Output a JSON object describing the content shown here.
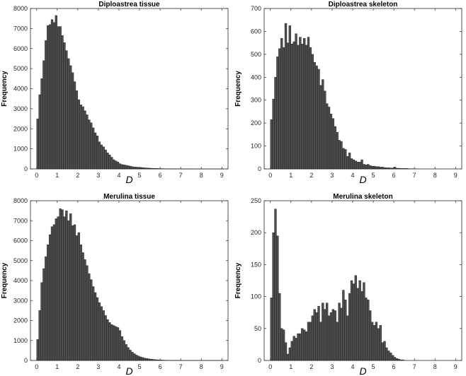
{
  "chart_data": [
    {
      "type": "bar",
      "title": "Diploastrea tissue",
      "xlabel": "D",
      "ylabel": "Frequency",
      "xlim": [
        -0.3,
        9.3
      ],
      "ylim": [
        0,
        8000
      ],
      "xticks": [
        0,
        1,
        2,
        3,
        4,
        5,
        6,
        7,
        8,
        9
      ],
      "yticks": [
        0,
        1000,
        2000,
        3000,
        4000,
        5000,
        6000,
        7000,
        8000
      ],
      "bin_width": 0.1,
      "x": [
        0.0,
        0.1,
        0.2,
        0.3,
        0.4,
        0.5,
        0.6,
        0.7,
        0.8,
        0.9,
        1.0,
        1.1,
        1.2,
        1.3,
        1.4,
        1.5,
        1.6,
        1.7,
        1.8,
        1.9,
        2.0,
        2.1,
        2.2,
        2.3,
        2.4,
        2.5,
        2.6,
        2.7,
        2.8,
        2.9,
        3.0,
        3.1,
        3.2,
        3.3,
        3.4,
        3.5,
        3.6,
        3.7,
        3.8,
        3.9,
        4.0,
        4.1,
        4.2,
        4.3,
        4.4,
        4.5,
        4.6,
        4.7,
        4.8,
        4.9,
        5.0,
        5.1,
        5.2,
        5.3,
        5.4,
        5.5,
        5.6,
        5.7,
        5.8,
        5.9,
        6.0,
        6.1,
        6.2,
        6.3,
        6.4,
        6.5,
        6.6,
        6.7,
        6.8,
        6.9,
        7.0,
        7.1,
        7.2,
        7.3,
        7.4,
        7.5,
        7.6,
        7.7,
        7.8,
        7.9,
        8.0,
        8.1,
        8.2,
        8.3,
        8.4,
        8.5,
        8.6,
        8.7,
        8.8,
        8.9,
        9.0
      ],
      "values": [
        2500,
        3700,
        4500,
        5400,
        6400,
        7150,
        7200,
        7450,
        7300,
        7650,
        7100,
        7100,
        6650,
        6300,
        5900,
        5500,
        5150,
        4800,
        4350,
        3900,
        3450,
        3200,
        3100,
        2900,
        2700,
        2450,
        2300,
        2050,
        1800,
        1650,
        1350,
        1200,
        1100,
        950,
        800,
        700,
        580,
        460,
        400,
        350,
        260,
        220,
        200,
        180,
        160,
        140,
        115,
        100,
        90,
        80,
        75,
        65,
        55,
        48,
        40,
        35,
        30,
        26,
        22,
        18,
        16,
        14,
        12,
        10,
        9,
        8,
        7,
        6,
        5,
        5,
        4,
        4,
        3,
        3,
        3,
        2,
        2,
        2,
        2,
        2,
        2,
        1,
        1,
        1,
        1,
        1,
        1,
        1,
        1,
        1,
        1
      ]
    },
    {
      "type": "bar",
      "title": "Diploastrea skeleton",
      "xlabel": "D",
      "ylabel": "Frequency",
      "xlim": [
        -0.3,
        9.3
      ],
      "ylim": [
        0,
        700
      ],
      "xticks": [
        0,
        1,
        2,
        3,
        4,
        5,
        6,
        7,
        8,
        9
      ],
      "yticks": [
        0,
        100,
        200,
        300,
        400,
        500,
        600,
        700
      ],
      "bin_width": 0.1,
      "x": [
        0.0,
        0.1,
        0.2,
        0.3,
        0.4,
        0.5,
        0.6,
        0.7,
        0.8,
        0.9,
        1.0,
        1.1,
        1.2,
        1.3,
        1.4,
        1.5,
        1.6,
        1.7,
        1.8,
        1.9,
        2.0,
        2.1,
        2.2,
        2.3,
        2.4,
        2.5,
        2.6,
        2.7,
        2.8,
        2.9,
        3.0,
        3.1,
        3.2,
        3.3,
        3.4,
        3.5,
        3.6,
        3.7,
        3.8,
        3.9,
        4.0,
        4.1,
        4.2,
        4.3,
        4.4,
        4.5,
        4.6,
        4.7,
        4.8,
        4.9,
        5.0,
        5.1,
        5.2,
        5.3,
        5.4,
        5.5,
        5.6,
        5.7,
        5.8,
        5.9,
        6.0,
        6.1,
        6.2,
        6.3,
        6.4,
        6.5,
        6.6,
        6.7,
        6.8,
        6.9,
        7.0
      ],
      "values": [
        215,
        305,
        400,
        490,
        525,
        570,
        530,
        635,
        550,
        625,
        545,
        555,
        590,
        540,
        575,
        545,
        570,
        540,
        575,
        530,
        500,
        465,
        450,
        435,
        365,
        390,
        340,
        285,
        270,
        240,
        220,
        185,
        160,
        125,
        120,
        90,
        85,
        55,
        70,
        45,
        40,
        35,
        30,
        30,
        40,
        20,
        18,
        20,
        15,
        12,
        12,
        10,
        10,
        8,
        8,
        6,
        5,
        5,
        4,
        4,
        8,
        3,
        3,
        2,
        2,
        2,
        2,
        1,
        1,
        1,
        1
      ]
    },
    {
      "type": "bar",
      "title": "Merulina tissue",
      "xlabel": "D",
      "ylabel": "Frequency",
      "xlim": [
        -0.3,
        9.3
      ],
      "ylim": [
        0,
        8000
      ],
      "xticks": [
        0,
        1,
        2,
        3,
        4,
        5,
        6,
        7,
        8,
        9
      ],
      "yticks": [
        0,
        1000,
        2000,
        3000,
        4000,
        5000,
        6000,
        7000,
        8000
      ],
      "bin_width": 0.1,
      "x": [
        0.0,
        0.1,
        0.2,
        0.3,
        0.4,
        0.5,
        0.6,
        0.7,
        0.8,
        0.9,
        1.0,
        1.1,
        1.2,
        1.3,
        1.4,
        1.5,
        1.6,
        1.7,
        1.8,
        1.9,
        2.0,
        2.1,
        2.2,
        2.3,
        2.4,
        2.5,
        2.6,
        2.7,
        2.8,
        2.9,
        3.0,
        3.1,
        3.2,
        3.3,
        3.4,
        3.5,
        3.6,
        3.7,
        3.8,
        3.9,
        4.0,
        4.1,
        4.2,
        4.3,
        4.4,
        4.5,
        4.6,
        4.7,
        4.8,
        4.9,
        5.0,
        5.1,
        5.2,
        5.3,
        5.4,
        5.5,
        5.6,
        5.7,
        5.8,
        5.9,
        6.0,
        6.1,
        6.2,
        6.3,
        6.4,
        6.5,
        6.6,
        6.7,
        6.8,
        6.9,
        7.0,
        7.1,
        7.2,
        7.3,
        7.4,
        7.5,
        7.6,
        7.7,
        7.8,
        7.9,
        8.0,
        8.1,
        8.2,
        8.3,
        8.4,
        8.5,
        8.6,
        8.7,
        8.8,
        8.9,
        9.0
      ],
      "values": [
        1050,
        2500,
        3900,
        4600,
        5200,
        5800,
        6300,
        6700,
        6800,
        7100,
        7200,
        7600,
        7550,
        7200,
        7500,
        7000,
        7350,
        6750,
        6800,
        6250,
        6400,
        5800,
        5400,
        5050,
        4750,
        4350,
        4050,
        3700,
        3400,
        3150,
        2900,
        2700,
        2500,
        2250,
        2050,
        1900,
        1800,
        1750,
        1700,
        1650,
        1500,
        1200,
        1000,
        800,
        650,
        520,
        420,
        340,
        270,
        220,
        180,
        150,
        120,
        100,
        80,
        65,
        55,
        45,
        36,
        28,
        22,
        18,
        14,
        12,
        10,
        8,
        6,
        5,
        4,
        3,
        3,
        2,
        2,
        2,
        1,
        1,
        1,
        1,
        1,
        1,
        1,
        1,
        1,
        1,
        1,
        1,
        1,
        1,
        1,
        1,
        1
      ]
    },
    {
      "type": "bar",
      "title": "Merulina skeleton",
      "xlabel": "D",
      "ylabel": "Frequency",
      "xlim": [
        -0.3,
        9.3
      ],
      "ylim": [
        0,
        250
      ],
      "xticks": [
        0,
        1,
        2,
        3,
        4,
        5,
        6,
        7,
        8,
        9
      ],
      "yticks": [
        0,
        50,
        100,
        150,
        200,
        250
      ],
      "bin_width": 0.1,
      "x": [
        0.0,
        0.1,
        0.2,
        0.3,
        0.4,
        0.5,
        0.6,
        0.7,
        0.8,
        0.9,
        1.0,
        1.1,
        1.2,
        1.3,
        1.4,
        1.5,
        1.6,
        1.7,
        1.8,
        1.9,
        2.0,
        2.1,
        2.2,
        2.3,
        2.4,
        2.5,
        2.6,
        2.7,
        2.8,
        2.9,
        3.0,
        3.1,
        3.2,
        3.3,
        3.4,
        3.5,
        3.6,
        3.7,
        3.8,
        3.9,
        4.0,
        4.1,
        4.2,
        4.3,
        4.4,
        4.5,
        4.6,
        4.7,
        4.8,
        4.9,
        5.0,
        5.1,
        5.2,
        5.3,
        5.4,
        5.5,
        5.6,
        5.7,
        5.8,
        5.9,
        6.0,
        6.1,
        6.2,
        6.3,
        6.4,
        6.5,
        6.6,
        6.7,
        6.8,
        6.9,
        7.0
      ],
      "values": [
        98,
        200,
        237,
        195,
        105,
        50,
        48,
        28,
        10,
        20,
        30,
        38,
        35,
        42,
        42,
        50,
        48,
        45,
        60,
        60,
        70,
        80,
        75,
        85,
        60,
        90,
        80,
        90,
        70,
        75,
        80,
        78,
        60,
        90,
        82,
        110,
        95,
        70,
        105,
        125,
        120,
        133,
        113,
        125,
        108,
        122,
        98,
        95,
        78,
        60,
        55,
        60,
        50,
        55,
        28,
        30,
        20,
        15,
        12,
        8,
        5,
        3,
        2,
        1,
        1,
        0,
        0,
        0,
        0,
        0,
        0
      ]
    }
  ]
}
